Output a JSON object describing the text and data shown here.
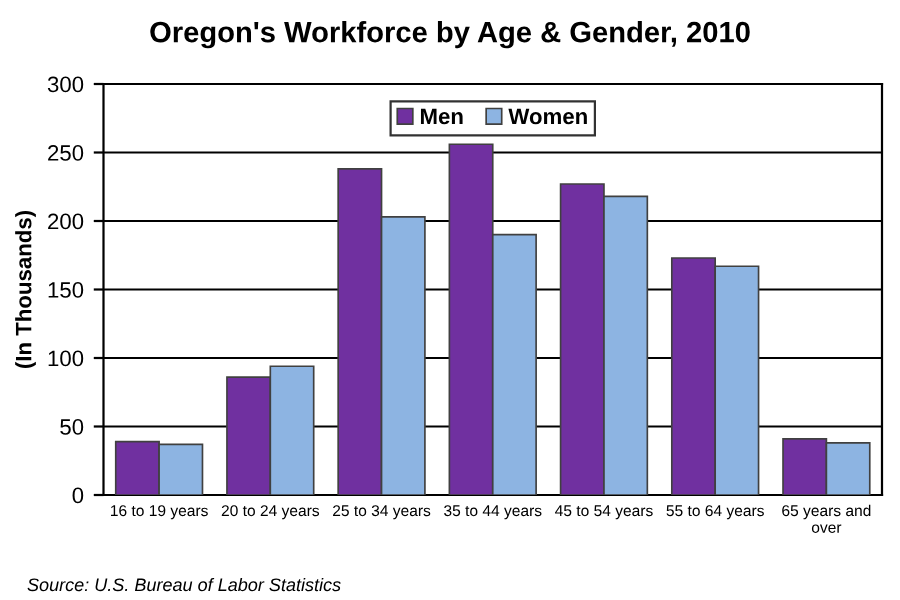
{
  "chart_data": {
    "type": "bar",
    "title": "Oregon's Workforce by Age & Gender, 2010",
    "ylabel": "(In Thousands)",
    "categories": [
      "16 to 19 years",
      "20 to 24 years",
      "25 to 34 years",
      "35 to 44 years",
      "45 to 54 years",
      "55 to 64 years",
      "65 years and\nover"
    ],
    "series": [
      {
        "name": "Men",
        "color": "#7030a0",
        "values": [
          39,
          86,
          238,
          256,
          227,
          173,
          41
        ]
      },
      {
        "name": "Women",
        "color": "#8db4e2",
        "values": [
          37,
          94,
          203,
          190,
          218,
          167,
          38
        ]
      }
    ],
    "ylim": [
      0,
      300
    ],
    "yticks": [
      0,
      50,
      100,
      150,
      200,
      250,
      300
    ],
    "grid": "y",
    "legend": "top",
    "annotations": [
      "Source: U.S. Bureau of Labor Statistics"
    ]
  }
}
